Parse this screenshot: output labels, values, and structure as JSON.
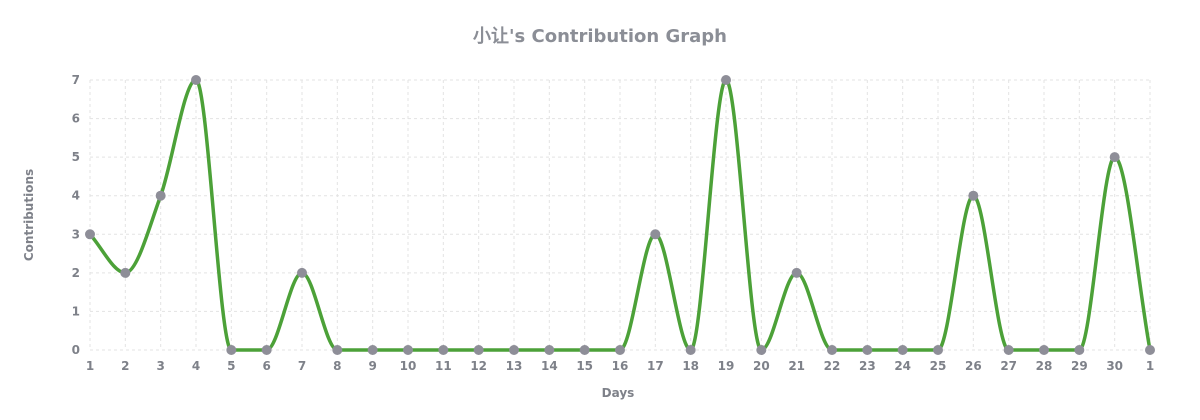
{
  "colors": {
    "line": "#4ca138",
    "point": "#8e8e98",
    "grid": "#e3e3e3",
    "text": "#7e8189",
    "title": "#8b8e96"
  },
  "chart_data": {
    "type": "line",
    "title": "小让's Contribution Graph",
    "xlabel": "Days",
    "ylabel": "Contributions",
    "x": [
      "1",
      "2",
      "3",
      "4",
      "5",
      "6",
      "7",
      "8",
      "9",
      "10",
      "11",
      "12",
      "13",
      "14",
      "15",
      "16",
      "17",
      "18",
      "19",
      "20",
      "21",
      "22",
      "23",
      "24",
      "25",
      "26",
      "27",
      "28",
      "29",
      "30",
      "1"
    ],
    "series": [
      {
        "values": [
          3,
          2,
          4,
          7,
          0,
          0,
          2,
          0,
          0,
          0,
          0,
          0,
          0,
          0,
          0,
          0,
          3,
          0,
          7,
          0,
          2,
          0,
          0,
          0,
          0,
          4,
          0,
          0,
          0,
          5,
          0
        ]
      }
    ],
    "ylim": [
      0,
      7
    ],
    "yticks": [
      "0",
      "1",
      "2",
      "3",
      "4",
      "5",
      "6",
      "7"
    ],
    "grid": true,
    "legend": "none",
    "smooth": true
  }
}
